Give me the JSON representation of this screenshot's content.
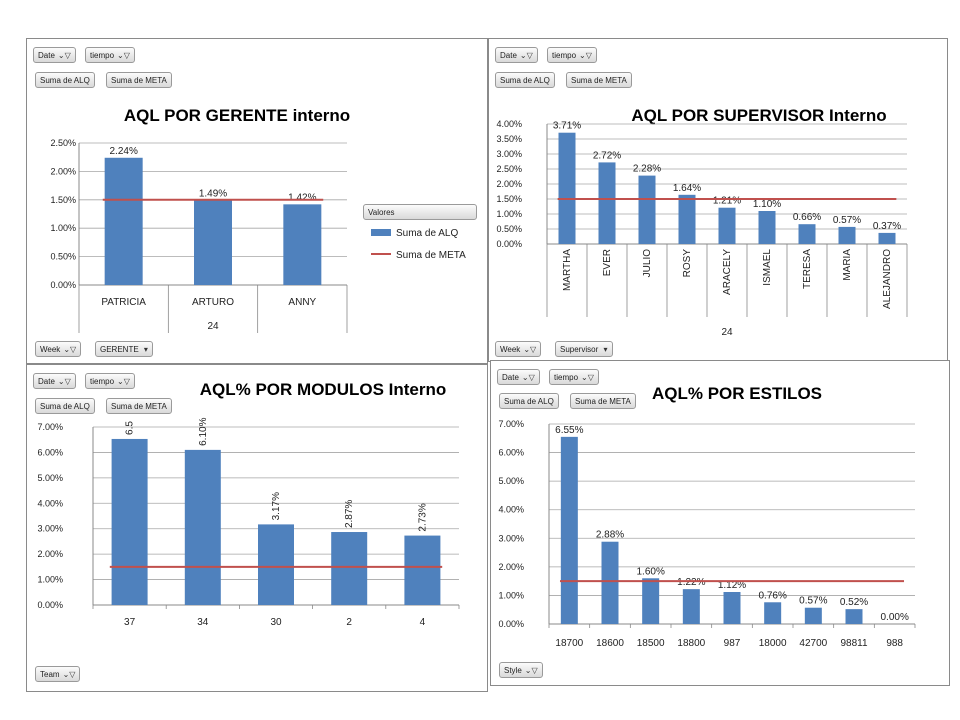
{
  "panels": [
    {
      "filters_top": [
        "Date",
        "tiempo"
      ],
      "value_fields": [
        "Suma de ALQ",
        "Suma de META"
      ],
      "filters_bottom": [
        {
          "label": "Week",
          "kind": "filter"
        },
        {
          "label": "GERENTE",
          "kind": "dropdown"
        }
      ],
      "legend": {
        "title": "Valores",
        "items": [
          "Suma de ALQ",
          "Suma de META"
        ]
      }
    },
    {
      "filters_top": [
        "Date",
        "tiempo"
      ],
      "value_fields": [
        "Suma de ALQ",
        "Suma de META"
      ],
      "filters_bottom": [
        {
          "label": "Week",
          "kind": "filter"
        },
        {
          "label": "Supervisor",
          "kind": "dropdown"
        }
      ]
    },
    {
      "filters_top": [
        "Date",
        "tiempo"
      ],
      "value_fields": [
        "Suma de ALQ",
        "Suma de META"
      ],
      "filters_bottom": [
        {
          "label": "Team",
          "kind": "filter"
        }
      ]
    },
    {
      "filters_top": [
        "Date",
        "tiempo"
      ],
      "value_fields": [
        "Suma de ALQ",
        "Suma de META"
      ],
      "filters_bottom": [
        {
          "label": "Style",
          "kind": "filter"
        }
      ]
    }
  ],
  "colors": {
    "bar": "#4f81bd",
    "meta": "#c0504d",
    "grid": "#a6a6a6"
  },
  "chart_data": [
    {
      "type": "bar",
      "title": "AQL POR GERENTE interno",
      "categories": [
        "PATRICIA",
        "ARTURO",
        "ANNY"
      ],
      "group_label": "24",
      "yticks": [
        "0.00%",
        "0.50%",
        "1.00%",
        "1.50%",
        "2.00%",
        "2.50%"
      ],
      "ylim": [
        0,
        0.025
      ],
      "series": [
        {
          "name": "Suma de ALQ",
          "values": [
            0.0224,
            0.0149,
            0.0142
          ],
          "labels": [
            "2.24%",
            "1.49%",
            "1.42%"
          ]
        },
        {
          "name": "Suma de META",
          "type": "line",
          "values": [
            0.015,
            0.015,
            0.015
          ]
        }
      ],
      "grid": true,
      "legend": "right",
      "label_rotation": "horizontal"
    },
    {
      "type": "bar",
      "title": "AQL POR SUPERVISOR  Interno",
      "categories": [
        "MARTHA",
        "EVER",
        "JULIO",
        "ROSY",
        "ARACELY",
        "ISMAEL",
        "TERESA",
        "MARIA",
        "ALEJANDRO"
      ],
      "group_label": "24",
      "yticks": [
        "0.00%",
        "0.50%",
        "1.00%",
        "1.50%",
        "2.00%",
        "2.50%",
        "3.00%",
        "3.50%",
        "4.00%"
      ],
      "ylim": [
        0,
        0.04
      ],
      "series": [
        {
          "name": "Suma de ALQ",
          "values": [
            0.0371,
            0.0272,
            0.0228,
            0.0164,
            0.0121,
            0.011,
            0.0066,
            0.0057,
            0.0037
          ],
          "labels": [
            "3.71%",
            "2.72%",
            "2.28%",
            "1.64%",
            "1.21%",
            "1.10%",
            "0.66%",
            "0.57%",
            "0.37%"
          ]
        },
        {
          "name": "Suma de META",
          "type": "line",
          "values": [
            0.015,
            0.015,
            0.015,
            0.015,
            0.015,
            0.015,
            0.015,
            0.015,
            0.015
          ]
        }
      ],
      "grid": true,
      "label_rotation": "horizontal"
    },
    {
      "type": "bar",
      "title": "AQL% POR MODULOS Interno",
      "categories": [
        "37",
        "34",
        "30",
        "2",
        "4"
      ],
      "yticks": [
        "0.00%",
        "1.00%",
        "2.00%",
        "3.00%",
        "4.00%",
        "5.00%",
        "6.00%",
        "7.00%"
      ],
      "ylim": [
        0,
        0.07
      ],
      "series": [
        {
          "name": "Suma de ALQ",
          "values": [
            0.0653,
            0.061,
            0.0317,
            0.0287,
            0.0273
          ],
          "labels": [
            "6.5",
            "6.10%",
            "3.17%",
            "2.87%",
            "2.73%"
          ]
        },
        {
          "name": "Suma de META",
          "type": "line",
          "values": [
            0.015,
            0.015,
            0.015,
            0.015,
            0.015
          ]
        }
      ],
      "grid": true,
      "label_rotation": "vertical"
    },
    {
      "type": "bar",
      "title": "AQL% POR ESTILOS",
      "categories": [
        "18700",
        "18600",
        "18500",
        "18800",
        "987",
        "18000",
        "42700",
        "98811",
        "988"
      ],
      "yticks": [
        "0.00%",
        "1.00%",
        "2.00%",
        "3.00%",
        "4.00%",
        "5.00%",
        "6.00%",
        "7.00%"
      ],
      "ylim": [
        0,
        0.07
      ],
      "series": [
        {
          "name": "Suma de ALQ",
          "values": [
            0.0655,
            0.0288,
            0.016,
            0.0122,
            0.0112,
            0.0076,
            0.0057,
            0.0052,
            0.0
          ],
          "labels": [
            "6.55%",
            "2.88%",
            "1.60%",
            "1.22%",
            "1.12%",
            "0.76%",
            "0.57%",
            "0.52%",
            "0.00%"
          ]
        },
        {
          "name": "Suma de META",
          "type": "line",
          "values": [
            0.015,
            0.015,
            0.015,
            0.015,
            0.015,
            0.015,
            0.015,
            0.015,
            0.015
          ]
        }
      ],
      "grid": true,
      "label_rotation": "horizontal"
    }
  ]
}
